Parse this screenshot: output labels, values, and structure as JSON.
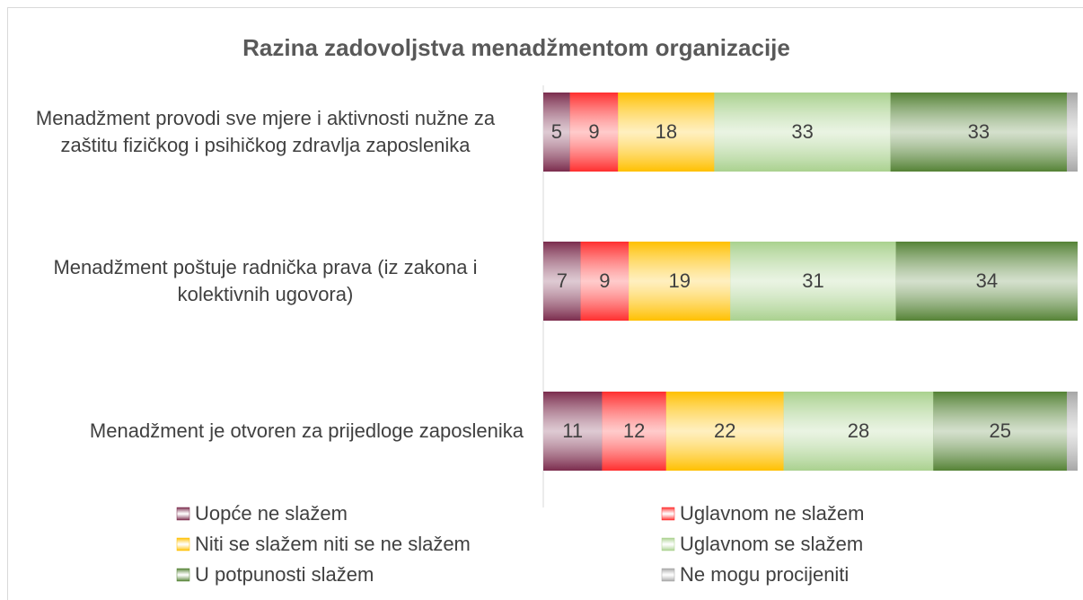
{
  "chart_data": {
    "type": "stacked_bar_horizontal",
    "title": "Razina zadovoljstva menadžmentom organizacije",
    "categories": [
      "Menadžment provodi sve mjere i aktivnosti nužne za zaštitu fizičkog i psihičkog zdravlja zaposlenika",
      "Menadžment poštuje radnička prava (iz zakona i kolektivnih ugovora)",
      "Menadžment je otvoren za prijedloge zaposlenika"
    ],
    "xlim": [
      0,
      100
    ],
    "series": [
      {
        "name": "Uopće ne slažem",
        "color": "#7b2c4d",
        "values": [
          5,
          7,
          11
        ]
      },
      {
        "name": "Uglavnom ne slažem",
        "color": "#ff2e2e",
        "values": [
          9,
          9,
          12
        ]
      },
      {
        "name": "Niti se slažem niti se ne slažem",
        "color": "#ffc000",
        "values": [
          18,
          19,
          22
        ]
      },
      {
        "name": "Uglavnom  se slažem",
        "color": "#a9d18e",
        "values": [
          33,
          31,
          28
        ]
      },
      {
        "name": "U potpunosti slažem",
        "color": "#548235",
        "values": [
          33,
          34,
          25
        ]
      },
      {
        "name": "Ne mogu procijeniti",
        "color": "#a6a6a6",
        "values": [
          2,
          0,
          2
        ],
        "data_labels": false
      }
    ]
  }
}
